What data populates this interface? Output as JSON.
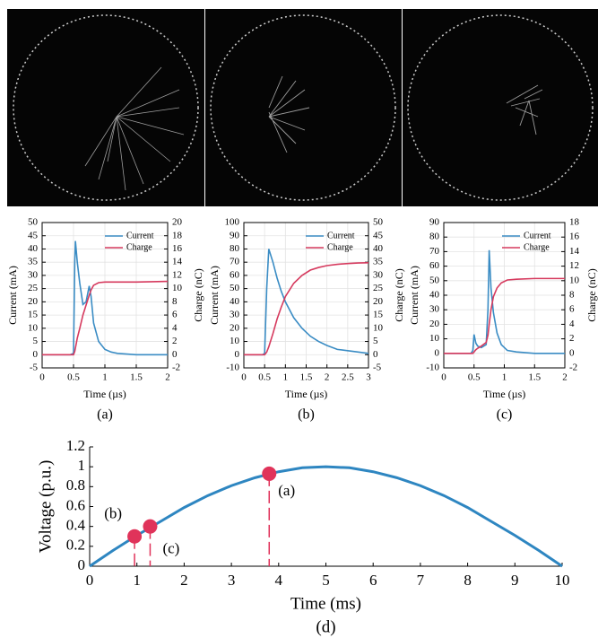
{
  "chart_data": [
    {
      "type": "line",
      "caption": "(a)",
      "xlabel": "Time (µs)",
      "ylabel": "Current (mA)",
      "y2label": "Charge (nC)",
      "x": [
        0,
        0.45,
        0.5,
        0.52,
        0.53,
        0.56,
        0.6,
        0.65,
        0.7,
        0.75,
        0.78,
        0.82,
        0.9,
        1.0,
        1.1,
        1.2,
        1.5,
        2
      ],
      "series": [
        {
          "name": "Current",
          "color": "#3a8cc4",
          "values": [
            0,
            0,
            0.5,
            35,
            43,
            35,
            27,
            19,
            20,
            26,
            22,
            12,
            5,
            2,
            1,
            0.5,
            0,
            0
          ]
        },
        {
          "name": "Charge",
          "color": "#d63a5e",
          "axis": "y2",
          "values": [
            0,
            0,
            0,
            0.5,
            1,
            2.5,
            4,
            6,
            7.5,
            9,
            9.8,
            10.5,
            10.9,
            11,
            11,
            11,
            11,
            11.1
          ]
        }
      ],
      "xlim": [
        0,
        2
      ],
      "xticks": [
        0,
        0.5,
        1,
        1.5,
        2
      ],
      "ylim": [
        -5,
        50
      ],
      "yticks": [
        -5,
        0,
        5,
        10,
        15,
        20,
        25,
        30,
        35,
        40,
        45,
        50
      ],
      "y2lim": [
        -2,
        20
      ],
      "y2ticks": [
        -2,
        0,
        2,
        4,
        6,
        8,
        10,
        12,
        14,
        16,
        18,
        20
      ],
      "grid": true
    },
    {
      "type": "line",
      "caption": "(b)",
      "xlabel": "Time (µs)",
      "ylabel": "Current (mA)",
      "y2label": "Charge (nC)",
      "x": [
        0,
        0.45,
        0.5,
        0.55,
        0.6,
        0.7,
        0.8,
        0.9,
        1,
        1.2,
        1.4,
        1.6,
        1.8,
        2,
        2.25,
        2.5,
        2.75,
        3
      ],
      "series": [
        {
          "name": "Current",
          "color": "#3a8cc4",
          "values": [
            0,
            0,
            1,
            50,
            80,
            70,
            58,
            48,
            40,
            28,
            20,
            14,
            10,
            7,
            4,
            3,
            2,
            1
          ]
        },
        {
          "name": "Charge",
          "color": "#d63a5e",
          "axis": "y2",
          "values": [
            0,
            0,
            0,
            1,
            3,
            8,
            13.5,
            18,
            22,
            27,
            30,
            32,
            33,
            33.7,
            34.2,
            34.5,
            34.7,
            34.8
          ]
        }
      ],
      "xlim": [
        0,
        3
      ],
      "xticks": [
        0,
        0.5,
        1,
        1.5,
        2,
        2.5,
        3
      ],
      "ylim": [
        -10,
        100
      ],
      "yticks": [
        -10,
        0,
        10,
        20,
        30,
        40,
        50,
        60,
        70,
        80,
        90,
        100
      ],
      "y2lim": [
        -5,
        50
      ],
      "y2ticks": [
        -5,
        0,
        5,
        10,
        15,
        20,
        25,
        30,
        35,
        40,
        45,
        50
      ],
      "grid": true
    },
    {
      "type": "line",
      "caption": "(c)",
      "xlabel": "Time (µs)",
      "ylabel": "Current (mA)",
      "y2label": "Charge (nC)",
      "x": [
        0,
        0.45,
        0.48,
        0.5,
        0.53,
        0.56,
        0.62,
        0.7,
        0.73,
        0.75,
        0.78,
        0.82,
        0.88,
        0.95,
        1.05,
        1.2,
        1.5,
        2
      ],
      "series": [
        {
          "name": "Current",
          "color": "#3a8cc4",
          "values": [
            0,
            0,
            2,
            13,
            7,
            5,
            4,
            6,
            30,
            71,
            45,
            28,
            14,
            6,
            2,
            1,
            0,
            0
          ]
        },
        {
          "name": "Charge",
          "color": "#d63a5e",
          "axis": "y2",
          "values": [
            0,
            0,
            0,
            0.2,
            0.5,
            0.7,
            1,
            1.5,
            2.5,
            4,
            6,
            7.8,
            9,
            9.7,
            10.1,
            10.2,
            10.3,
            10.3
          ]
        }
      ],
      "xlim": [
        0,
        2
      ],
      "xticks": [
        0,
        0.5,
        1,
        1.5,
        2
      ],
      "ylim": [
        -10,
        90
      ],
      "yticks": [
        -10,
        0,
        10,
        20,
        30,
        40,
        50,
        60,
        70,
        80,
        90
      ],
      "y2lim": [
        -2,
        18
      ],
      "y2ticks": [
        -2,
        0,
        2,
        4,
        6,
        8,
        10,
        12,
        14,
        16,
        18
      ],
      "grid": true
    },
    {
      "type": "line",
      "caption": "(d)",
      "xlabel": "Time (ms)",
      "ylabel": "Voltage (p.u.)",
      "x": [
        0,
        0.5,
        1,
        1.5,
        2,
        2.5,
        3,
        3.5,
        4,
        4.5,
        5,
        5.5,
        6,
        6.5,
        7,
        7.5,
        8,
        8.5,
        9,
        9.5,
        10
      ],
      "series": [
        {
          "color": "#2e86c1",
          "values": [
            0,
            0.16,
            0.31,
            0.45,
            0.59,
            0.71,
            0.81,
            0.89,
            0.95,
            0.99,
            1,
            0.99,
            0.95,
            0.89,
            0.81,
            0.71,
            0.59,
            0.45,
            0.31,
            0.16,
            0
          ]
        }
      ],
      "points": [
        {
          "label": "(a)",
          "x": 3.8,
          "y": 0.93
        },
        {
          "label": "(b)",
          "x": 0.95,
          "y": 0.3
        },
        {
          "label": "(c)",
          "x": 1.28,
          "y": 0.4
        }
      ],
      "point_color": "#e0335a",
      "xlim": [
        0,
        10
      ],
      "xticks": [
        0,
        1,
        2,
        3,
        4,
        5,
        6,
        7,
        8,
        9,
        10
      ],
      "ylim": [
        0,
        1.2
      ],
      "yticks": [
        0,
        0.2,
        0.4,
        0.6,
        0.8,
        1,
        1.2
      ],
      "grid": false
    }
  ]
}
